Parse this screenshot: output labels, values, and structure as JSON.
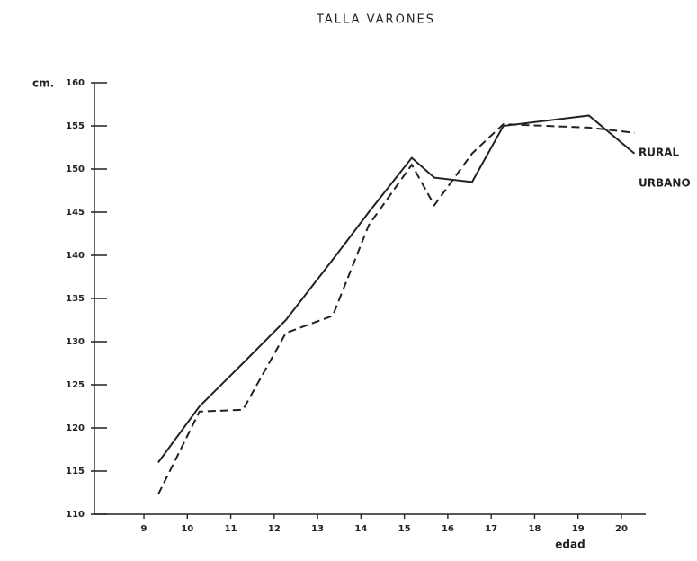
{
  "chart_data": {
    "type": "line",
    "title": "TALLA VARONES",
    "ylabel": "cm.",
    "xlabel": "edad",
    "x": [
      9.33,
      10.28,
      11.28,
      12.27,
      13.35,
      14.18,
      15.17,
      15.69,
      16.56,
      17.28,
      19.25,
      20.3
    ],
    "series": [
      {
        "name": "RURAL",
        "color": "#222222",
        "style": "dashed",
        "values": [
          112.3,
          121.9,
          122.1,
          131,
          133,
          143.5,
          150.5,
          145.8,
          151.8,
          155.2,
          154.8,
          154.2
        ]
      },
      {
        "name": "URBANO",
        "color": "#222222",
        "style": "solid",
        "values": [
          116,
          122.5,
          127.5,
          132.5,
          139.5,
          145,
          151.3,
          149,
          148.5,
          155,
          156.2,
          151.8
        ]
      }
    ],
    "xlim": [
      7.86,
      20.56
    ],
    "xticks": [
      9,
      10,
      11,
      12,
      13,
      14,
      15,
      16,
      17,
      18,
      19,
      20
    ],
    "ylim": [
      110,
      160
    ],
    "yticks": [
      110,
      115,
      120,
      125,
      130,
      135,
      140,
      145,
      150,
      155,
      160
    ],
    "grid": false
  }
}
